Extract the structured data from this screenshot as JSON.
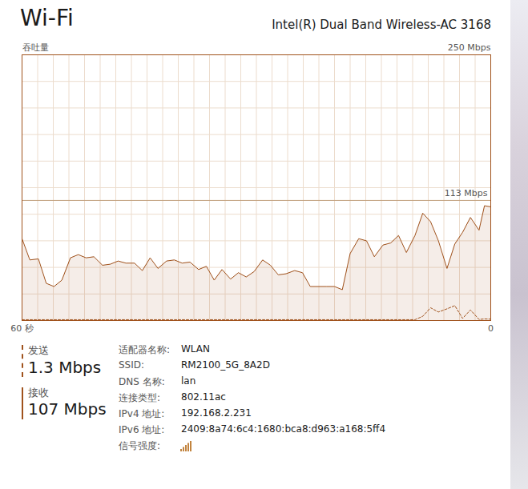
{
  "header": {
    "title": "Wi-Fi",
    "adapter": "Intel(R) Dual Band Wireless-AC 3168"
  },
  "chart_data": {
    "type": "area",
    "y_label": "吞吐量",
    "x": [
      60,
      59.0,
      57.9,
      56.9,
      55.9,
      54.9,
      53.8,
      52.8,
      51.8,
      50.8,
      49.7,
      48.7,
      47.7,
      46.7,
      45.6,
      44.6,
      43.6,
      42.6,
      41.5,
      40.5,
      39.5,
      38.5,
      37.4,
      36.4,
      35.4,
      34.4,
      33.3,
      32.3,
      31.3,
      30.3,
      29.2,
      28.2,
      27.2,
      26.2,
      25.1,
      24.1,
      23.1,
      22.1,
      21.0,
      20.0,
      19.0,
      18.0,
      16.9,
      15.9,
      14.9,
      13.8,
      12.8,
      11.8,
      10.8,
      9.7,
      8.7,
      7.7,
      6.7,
      5.6,
      4.6,
      3.6,
      2.6,
      1.5,
      0.8,
      0
    ],
    "series": [
      {
        "name": "接收",
        "color": "#a0521c",
        "type": "area",
        "line_style": "solid",
        "values": [
          77,
          57,
          58,
          35,
          32,
          38,
          59,
          62,
          59,
          60,
          52,
          53,
          56,
          54,
          54,
          47,
          59,
          49,
          56,
          57,
          54,
          55,
          48,
          51,
          38,
          48,
          39,
          45,
          41,
          46,
          57,
          52,
          43,
          44,
          47,
          45,
          32,
          32,
          32,
          32,
          29,
          63,
          77,
          75,
          60,
          71,
          73,
          80,
          64,
          80,
          101,
          93,
          75,
          49,
          72,
          83,
          97,
          85,
          108,
          107
        ]
      },
      {
        "name": "发送",
        "color": "#a0521c",
        "type": "line",
        "line_style": "dashed",
        "values": [
          0.8,
          0.8,
          0.8,
          0.8,
          0.8,
          0.8,
          0.8,
          0.8,
          0.8,
          0.8,
          0.8,
          0.8,
          0.8,
          0.8,
          0.8,
          0.8,
          0.8,
          0.8,
          0.8,
          0.8,
          0.8,
          0.8,
          0.8,
          0.8,
          0.8,
          0.8,
          0.8,
          0.8,
          0.8,
          0.8,
          0.8,
          0.8,
          0.8,
          0.8,
          0.8,
          0.8,
          0.8,
          0.8,
          0.8,
          0.8,
          0.8,
          0.8,
          0.8,
          0.8,
          0.8,
          0.8,
          0.8,
          0.8,
          0.8,
          0.8,
          4,
          12,
          8,
          11,
          14,
          2,
          10,
          1,
          1.5,
          1.3
        ]
      }
    ],
    "xlim": [
      60,
      0
    ],
    "xticks": [
      {
        "value": 60,
        "label": "60 秒"
      },
      0
    ],
    "ylim": [
      0,
      250
    ],
    "yticks": [
      0,
      25,
      50,
      75,
      100,
      125,
      150,
      175,
      200,
      225,
      250
    ],
    "tick_labels": "x",
    "grid": true,
    "annotations": [
      {
        "text": "250 Mbps",
        "y": 250
      },
      {
        "text": "113 Mbps",
        "y": 113,
        "type": "rule"
      }
    ]
  },
  "panel": {
    "send": {
      "label": "发送",
      "value": "1.3 Mbps"
    },
    "receive": {
      "label": "接收",
      "value": "107 Mbps"
    },
    "properties": [
      {
        "label": "适配器名称:",
        "value": "WLAN"
      },
      {
        "label": "SSID:",
        "value": "RM2100_5G_8A2D"
      },
      {
        "label": "DNS 名称:",
        "value": "lan"
      },
      {
        "label": "连接类型:",
        "value": "802.11ac"
      },
      {
        "label": "IPv4 地址:",
        "value": "192.168.2.231"
      },
      {
        "label": "IPv6 地址:",
        "value": "2409:8a74:6c4:1680:bca8:d963:a168:5ff4"
      },
      {
        "label": "信号强度:"
      }
    ]
  }
}
